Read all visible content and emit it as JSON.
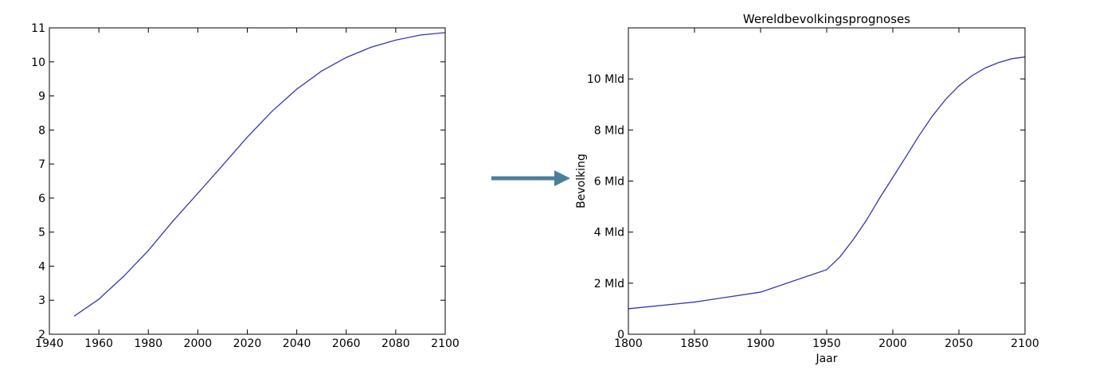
{
  "chart_data": [
    {
      "type": "line",
      "x": [
        1950,
        1960,
        1970,
        1980,
        1990,
        2000,
        2010,
        2020,
        2030,
        2040,
        2050,
        2060,
        2070,
        2080,
        2090,
        2100
      ],
      "series": [
        {
          "color": "#3636b4",
          "values": [
            2.53,
            3.03,
            3.7,
            4.46,
            5.33,
            6.14,
            6.96,
            7.79,
            8.55,
            9.2,
            9.73,
            10.13,
            10.43,
            10.64,
            10.79,
            10.86
          ]
        }
      ],
      "xlim": [
        1940,
        2100
      ],
      "xticks": [
        1940,
        1960,
        1980,
        2000,
        2020,
        2040,
        2060,
        2080,
        2100
      ],
      "ylim": [
        2,
        11
      ],
      "yticks": [
        2,
        3,
        4,
        5,
        6,
        7,
        8,
        9,
        10,
        11
      ]
    },
    {
      "type": "line",
      "title": "Wereldbevolkingsprognoses",
      "x_label": "Jaar",
      "y_label": "Bevolking",
      "x": [
        1800,
        1850,
        1900,
        1950,
        1960,
        1970,
        1980,
        1990,
        2000,
        2010,
        2020,
        2030,
        2040,
        2050,
        2060,
        2070,
        2080,
        2090,
        2100
      ],
      "series": [
        {
          "color": "#3636b4",
          "values": [
            1.0,
            1.26,
            1.65,
            2.53,
            3.03,
            3.7,
            4.46,
            5.33,
            6.14,
            6.96,
            7.79,
            8.55,
            9.2,
            9.73,
            10.13,
            10.43,
            10.64,
            10.79,
            10.86
          ]
        }
      ],
      "xlim": [
        1800,
        2100
      ],
      "xticks": [
        1800,
        1850,
        1900,
        1950,
        2000,
        2050,
        2100
      ],
      "ylim": [
        0,
        12
      ],
      "yticks": [
        0,
        {
          "value": 2,
          "label": "2 Mld"
        },
        {
          "value": 4,
          "label": "4 Mld"
        },
        {
          "value": 6,
          "label": "6 Mld"
        },
        {
          "value": 8,
          "label": "8 Mld"
        },
        {
          "value": 10,
          "label": "10 Mld"
        }
      ]
    }
  ]
}
